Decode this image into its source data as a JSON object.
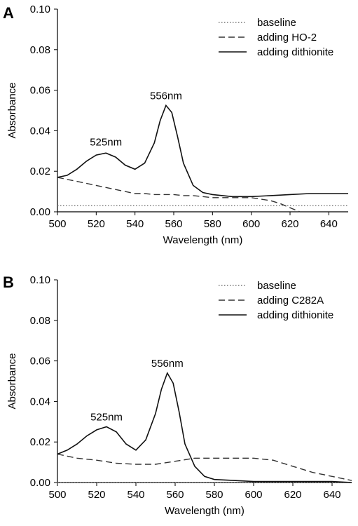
{
  "chart_data": [
    {
      "type": "line",
      "panel_label": "A",
      "xlabel": "Wavelength (nm)",
      "ylabel": "Absorbance",
      "xlim": [
        500,
        650
      ],
      "ylim": [
        0,
        0.1
      ],
      "x_ticks": [
        "500",
        "520",
        "540",
        "560",
        "580",
        "600",
        "620",
        "640"
      ],
      "y_ticks": [
        "0.00",
        "0.02",
        "0.04",
        "0.06",
        "0.08",
        "0.10"
      ],
      "legend_position": "top-right",
      "annotations": [
        {
          "text": "525nm",
          "x": 525,
          "y": 0.0295
        },
        {
          "text": "556nm",
          "x": 556,
          "y": 0.0525
        }
      ],
      "series": [
        {
          "name": "baseline",
          "style": "dotted",
          "x": [
            500,
            520,
            540,
            560,
            580,
            600,
            620,
            640,
            650
          ],
          "y": [
            0.003,
            0.003,
            0.003,
            0.003,
            0.003,
            0.003,
            0.003,
            0.003,
            0.003
          ]
        },
        {
          "name": "adding HO-2",
          "style": "dashed",
          "x": [
            500,
            505,
            510,
            515,
            520,
            525,
            530,
            535,
            540,
            545,
            550,
            555,
            560,
            565,
            570,
            575,
            580,
            590,
            600,
            610,
            615,
            620,
            625
          ],
          "y": [
            0.017,
            0.016,
            0.015,
            0.014,
            0.013,
            0.012,
            0.011,
            0.01,
            0.009,
            0.009,
            0.0085,
            0.0085,
            0.0085,
            0.008,
            0.008,
            0.0075,
            0.007,
            0.007,
            0.007,
            0.0055,
            0.004,
            0.002,
            0.0
          ]
        },
        {
          "name": "adding dithionite",
          "style": "solid",
          "x": [
            500,
            505,
            510,
            515,
            520,
            525,
            530,
            535,
            540,
            545,
            550,
            553,
            556,
            559,
            562,
            565,
            570,
            575,
            580,
            590,
            600,
            610,
            620,
            630,
            640,
            650
          ],
          "y": [
            0.017,
            0.018,
            0.021,
            0.025,
            0.028,
            0.029,
            0.027,
            0.023,
            0.021,
            0.024,
            0.034,
            0.045,
            0.0525,
            0.049,
            0.037,
            0.024,
            0.013,
            0.0095,
            0.0085,
            0.0075,
            0.0075,
            0.008,
            0.0085,
            0.009,
            0.009,
            0.009
          ]
        }
      ]
    },
    {
      "type": "line",
      "panel_label": "B",
      "xlabel": "Wavelength (nm)",
      "ylabel": "Absorbance",
      "xlim": [
        500,
        650
      ],
      "ylim": [
        0,
        0.1
      ],
      "x_ticks": [
        "500",
        "520",
        "540",
        "560",
        "580",
        "600",
        "620",
        "640"
      ],
      "y_ticks": [
        "0.00",
        "0.02",
        "0.04",
        "0.06",
        "0.08",
        "0.10"
      ],
      "legend_position": "top-right",
      "annotations": [
        {
          "text": "525nm",
          "x": 525,
          "y": 0.0275
        },
        {
          "text": "556nm",
          "x": 556,
          "y": 0.054
        }
      ],
      "series": [
        {
          "name": "baseline",
          "style": "dotted",
          "x": [
            500,
            520,
            540,
            560,
            580,
            600,
            620,
            640,
            650
          ],
          "y": [
            0.0,
            0.0,
            0.0,
            0.0,
            0.0,
            0.0,
            0.0,
            0.0,
            0.0
          ]
        },
        {
          "name": "adding C282A",
          "style": "dashed",
          "x": [
            500,
            505,
            510,
            520,
            530,
            540,
            550,
            560,
            570,
            580,
            590,
            600,
            610,
            620,
            630,
            640,
            650
          ],
          "y": [
            0.014,
            0.013,
            0.012,
            0.011,
            0.0095,
            0.009,
            0.009,
            0.0105,
            0.012,
            0.012,
            0.012,
            0.012,
            0.011,
            0.008,
            0.005,
            0.003,
            0.001
          ]
        },
        {
          "name": "adding dithionite",
          "style": "solid",
          "x": [
            500,
            505,
            510,
            515,
            520,
            525,
            530,
            535,
            540,
            545,
            550,
            553,
            556,
            559,
            562,
            565,
            570,
            575,
            580,
            590,
            600,
            610,
            620,
            630,
            640,
            650
          ],
          "y": [
            0.014,
            0.016,
            0.019,
            0.023,
            0.026,
            0.0275,
            0.025,
            0.019,
            0.016,
            0.021,
            0.034,
            0.046,
            0.054,
            0.049,
            0.035,
            0.019,
            0.008,
            0.003,
            0.0015,
            0.001,
            0.0005,
            0.0005,
            0.0005,
            0.0005,
            0.0005,
            0.0
          ]
        }
      ]
    }
  ]
}
